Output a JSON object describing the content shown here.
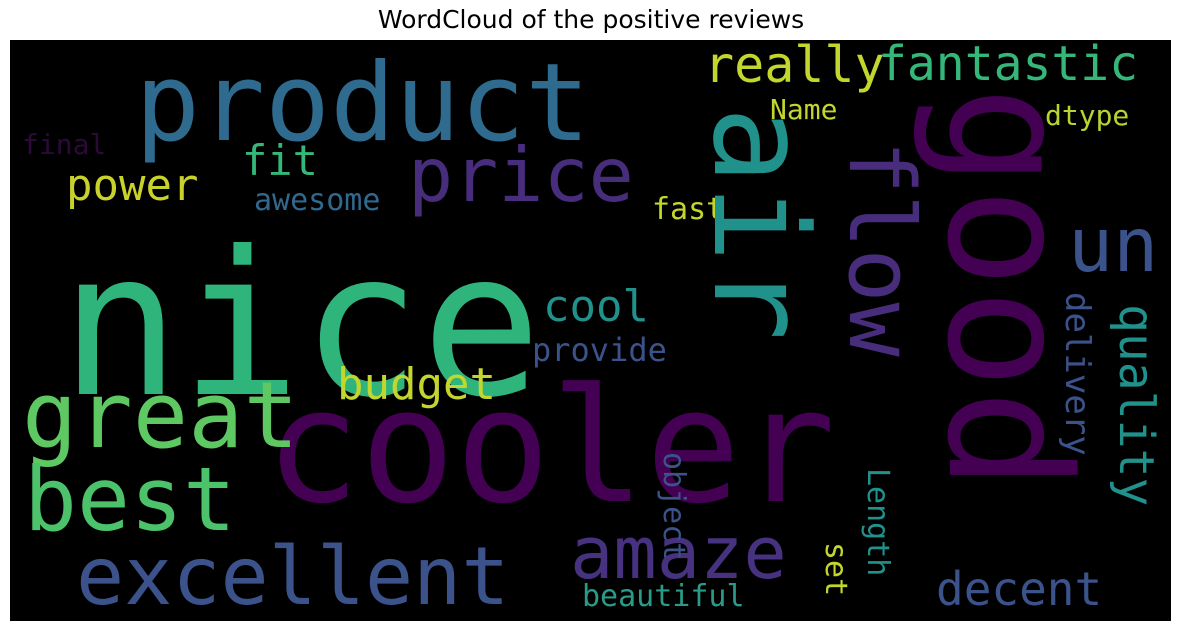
{
  "title": "WordCloud of the positive reviews",
  "colors": {
    "background": "#000000",
    "purple": "#440154",
    "indigo": "#3b528b",
    "blue": "#31688e",
    "teal": "#21918c",
    "green": "#35b779",
    "lime": "#5ec962",
    "yellow": "#c2d62d",
    "dark": "#2b0a3a"
  },
  "words": {
    "nice": "nice",
    "product": "product",
    "cooler": "cooler",
    "good": "good",
    "air": "air",
    "flow": "flow",
    "great": "great",
    "best": "best",
    "excellent": "excellent",
    "price": "price",
    "amaze": "amaze",
    "un": "un",
    "really": "really",
    "fantastic": "fantastic",
    "power": "power",
    "fit": "fit",
    "budget": "budget",
    "cool": "cool",
    "decent": "decent",
    "quality": "quality",
    "delivery": "delivery",
    "provide": "provide",
    "awesome": "awesome",
    "fast": "fast",
    "final": "final",
    "name": "Name",
    "dtype": "dtype",
    "beautiful": "beautiful",
    "length": "Length",
    "object": "object",
    "set": "set"
  }
}
